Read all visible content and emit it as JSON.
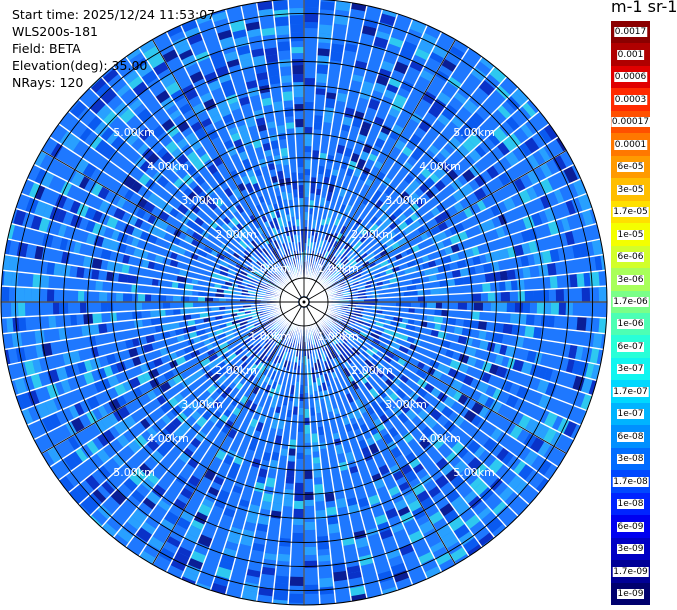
{
  "header": {
    "start_time": "Start time: 2025/12/24 11:53:07",
    "instrument": "WLS200s-181",
    "field": "Field: BETA",
    "elevation": "Elevation(deg): 35.00",
    "nrays": "NRays: 120"
  },
  "colorbar": {
    "title": "m-1 sr-1",
    "levels": [
      {
        "label": "0.0017",
        "color": "#8b0000"
      },
      {
        "label": "0.001",
        "color": "#b00000"
      },
      {
        "label": "0.0006",
        "color": "#e00000"
      },
      {
        "label": "0.0003",
        "color": "#ff2a00"
      },
      {
        "label": "0.00017",
        "color": "#ff5000"
      },
      {
        "label": "0.0001",
        "color": "#ff7800"
      },
      {
        "label": "6e-05",
        "color": "#ff9a00"
      },
      {
        "label": "3e-05",
        "color": "#ffbe00"
      },
      {
        "label": "1.7e-05",
        "color": "#ffe000"
      },
      {
        "label": "1e-05",
        "color": "#f4ff00"
      },
      {
        "label": "6e-06",
        "color": "#d2ff2a"
      },
      {
        "label": "3e-06",
        "color": "#a8ff5a"
      },
      {
        "label": "1.7e-06",
        "color": "#7aff88"
      },
      {
        "label": "1e-06",
        "color": "#4dffb4"
      },
      {
        "label": "6e-07",
        "color": "#28ffd8"
      },
      {
        "label": "3e-07",
        "color": "#10f5f0"
      },
      {
        "label": "1.7e-07",
        "color": "#00d8ff"
      },
      {
        "label": "1e-07",
        "color": "#00b4ff"
      },
      {
        "label": "6e-08",
        "color": "#0090ff"
      },
      {
        "label": "3e-08",
        "color": "#006cff"
      },
      {
        "label": "1.7e-08",
        "color": "#0048ff"
      },
      {
        "label": "1e-08",
        "color": "#0024ff"
      },
      {
        "label": "6e-09",
        "color": "#0000f0"
      },
      {
        "label": "3e-09",
        "color": "#0000c4"
      },
      {
        "label": "1.7e-09",
        "color": "#000096"
      },
      {
        "label": "1e-09",
        "color": "#00006e"
      }
    ]
  },
  "range_rings": {
    "labels": [
      "1.00km",
      "2.00km",
      "3.00km",
      "4.00km",
      "5.00km"
    ],
    "ring_km": [
      0.5,
      1.0,
      1.5,
      2.0,
      2.5,
      3.0,
      3.5,
      4.0,
      4.5,
      5.0,
      5.5,
      6.0
    ],
    "labeled_km": [
      1,
      2,
      3,
      4,
      5
    ],
    "max_km": 6.3
  },
  "scan": {
    "nrays": 120,
    "palette": {
      "background": "#1e78ff",
      "mid": "#0a5af0",
      "light": "#28a0ff",
      "cyan": "#2ec8f0",
      "deep": "#0a32c8",
      "navy": "#0a1e96"
    }
  }
}
